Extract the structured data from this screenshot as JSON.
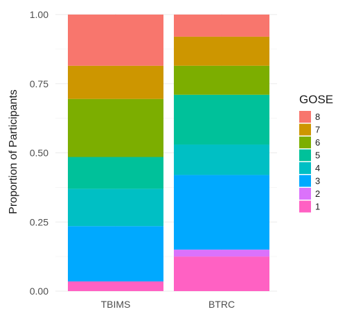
{
  "chart_data": {
    "type": "bar",
    "stacked": true,
    "categories": [
      "TBIMS",
      "BTRC"
    ],
    "ylabel": "Proportion of Participants",
    "xlabel": "",
    "ylim": [
      0,
      1
    ],
    "yticks": [
      "0.00",
      "0.25",
      "0.50",
      "0.75",
      "1.00"
    ],
    "grid": true,
    "legend": {
      "title": "GOSE",
      "position": "right"
    },
    "series": [
      {
        "name": "1",
        "color": "#FF61C3",
        "values": [
          0.035,
          0.125
        ]
      },
      {
        "name": "2",
        "color": "#DB72FB",
        "values": [
          0.0,
          0.025
        ]
      },
      {
        "name": "3",
        "color": "#00A9FF",
        "values": [
          0.2,
          0.27
        ]
      },
      {
        "name": "4",
        "color": "#00BFC4",
        "values": [
          0.135,
          0.11
        ]
      },
      {
        "name": "5",
        "color": "#00C19A",
        "values": [
          0.115,
          0.18
        ]
      },
      {
        "name": "6",
        "color": "#7CAE00",
        "values": [
          0.21,
          0.105
        ]
      },
      {
        "name": "7",
        "color": "#CD9600",
        "values": [
          0.12,
          0.105
        ]
      },
      {
        "name": "8",
        "color": "#F8766D",
        "values": [
          0.185,
          0.08
        ]
      }
    ]
  }
}
